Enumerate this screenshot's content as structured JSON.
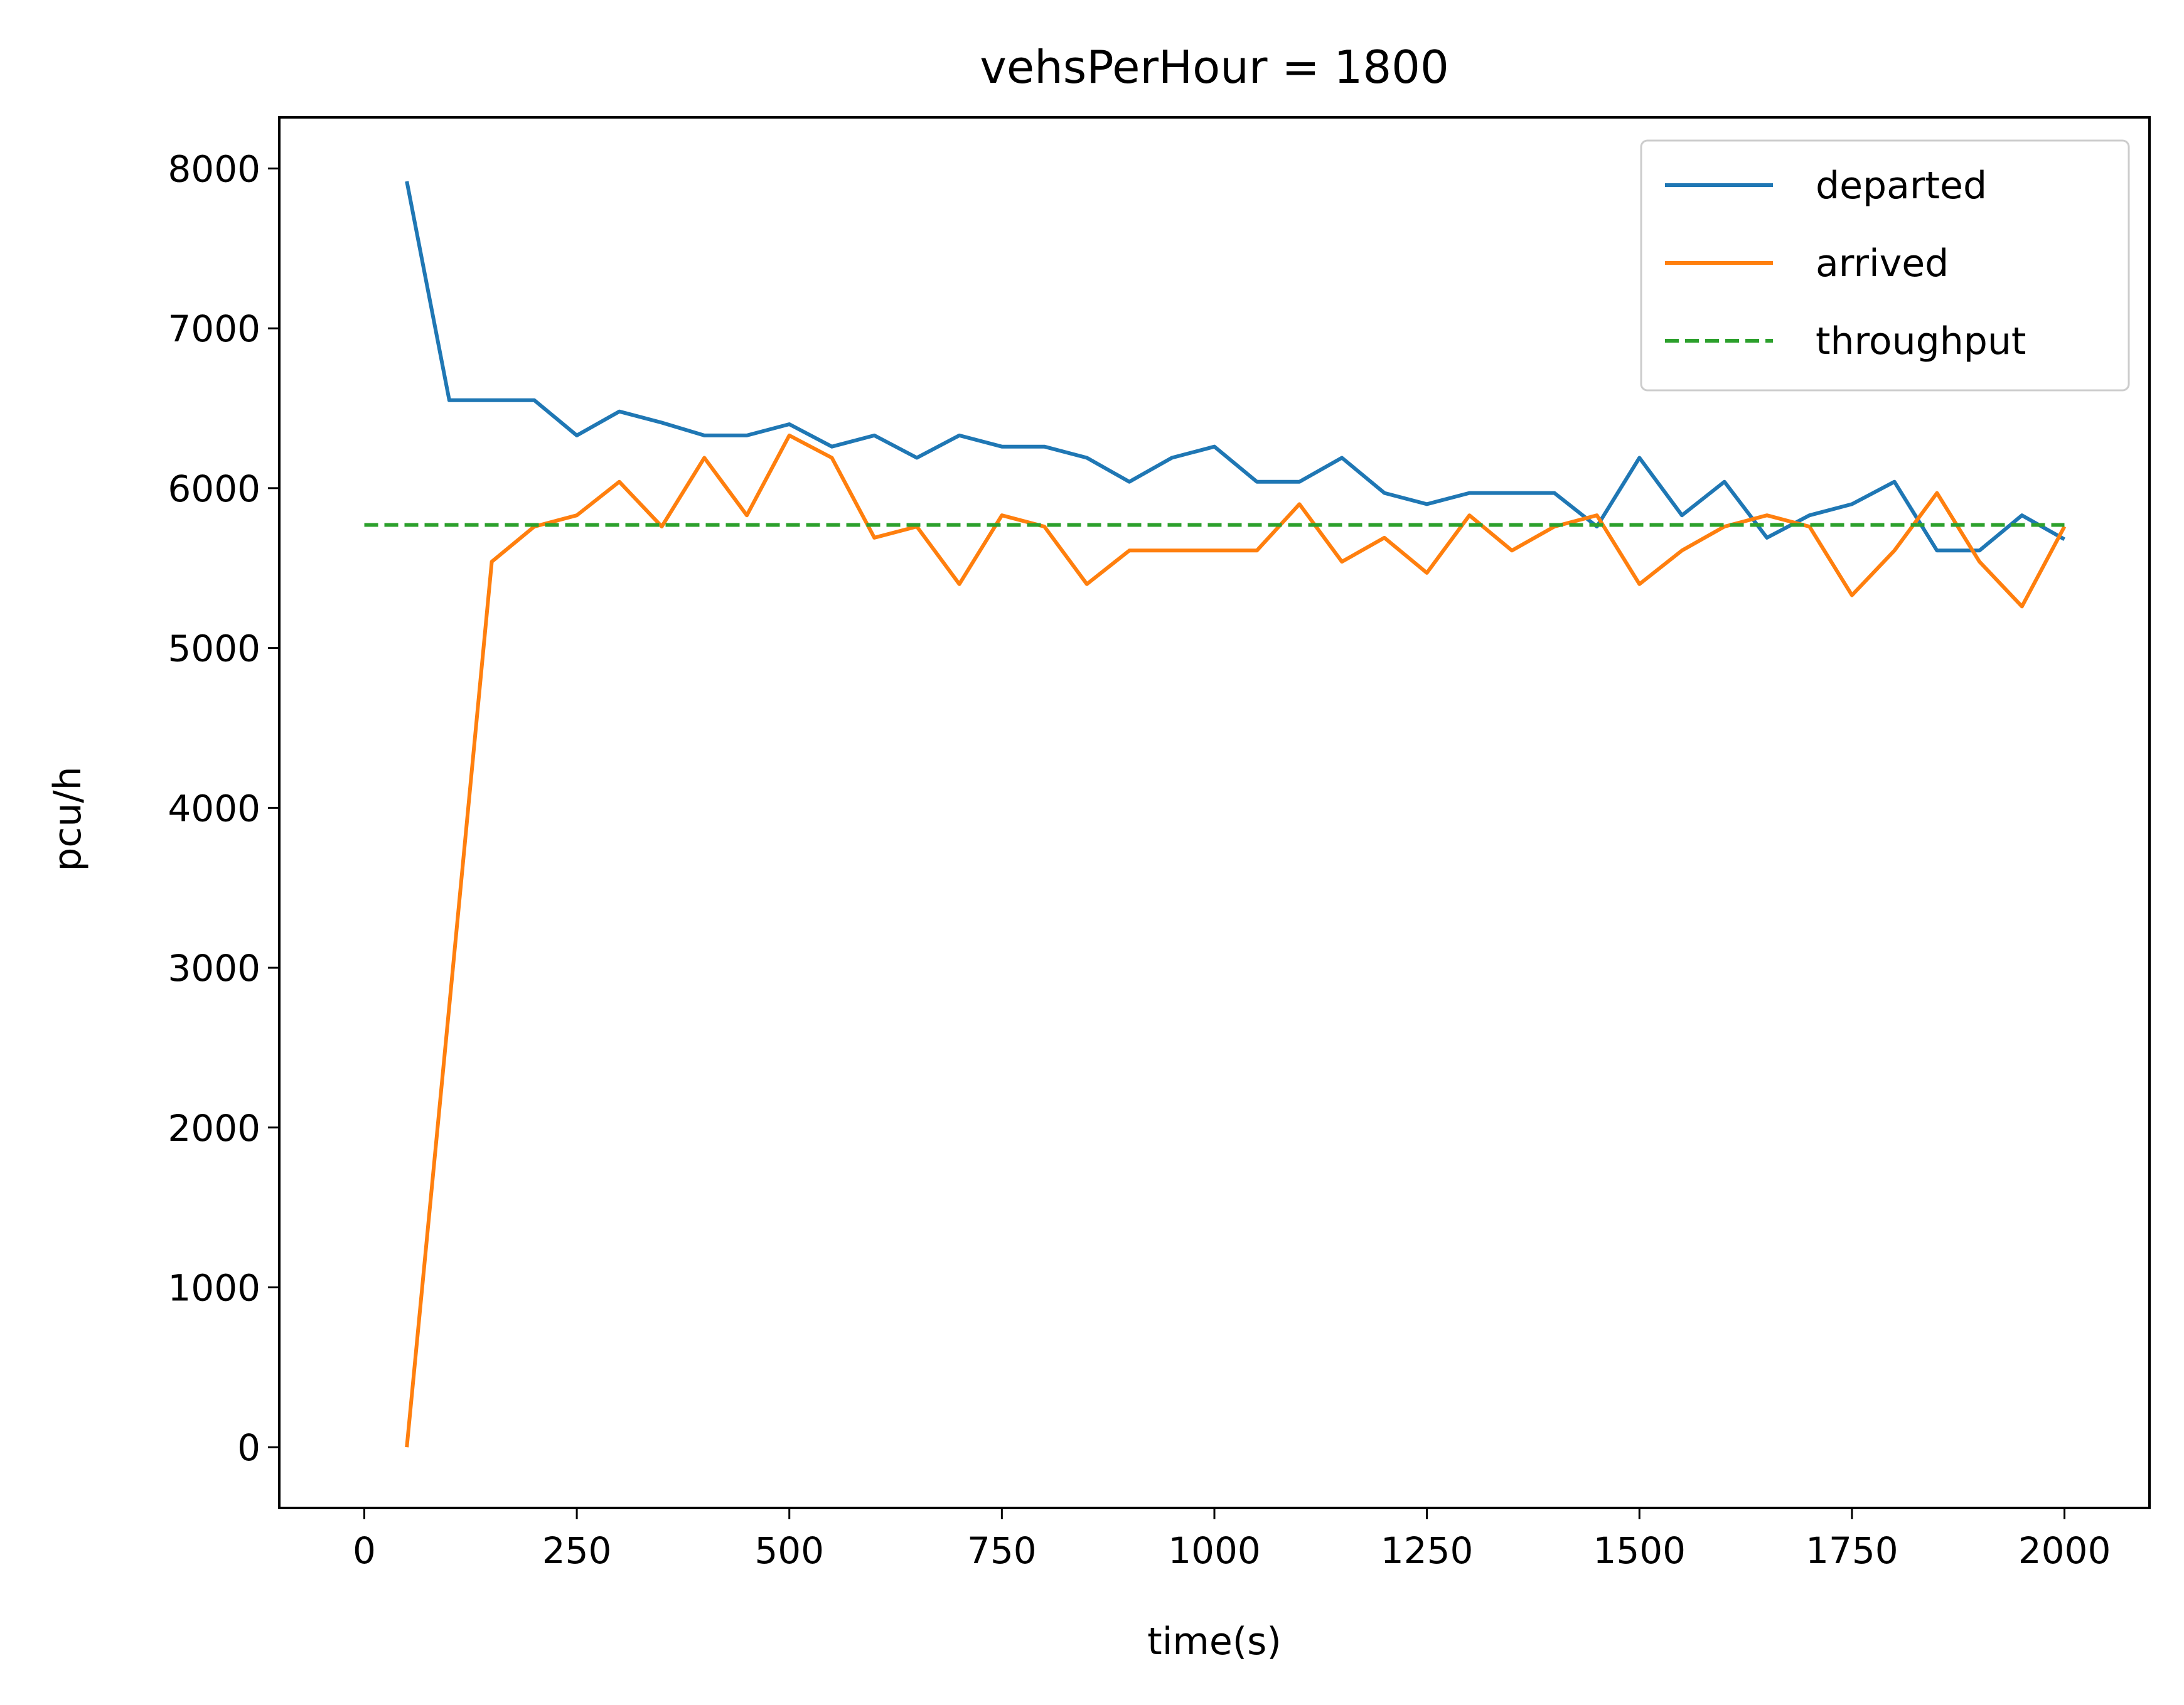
{
  "chart_data": {
    "type": "line",
    "title": "vehsPerHour = 1800",
    "xlabel": "time(s)",
    "ylabel": "pcu/h",
    "xlim": [
      -100,
      2100
    ],
    "ylim": [
      -380,
      8320
    ],
    "xticks": [
      0,
      250,
      500,
      750,
      1000,
      1250,
      1500,
      1750,
      2000
    ],
    "yticks": [
      0,
      1000,
      2000,
      3000,
      4000,
      5000,
      6000,
      7000,
      8000
    ],
    "xtick_labels": [
      "0",
      "250",
      "500",
      "750",
      "1000",
      "1250",
      "1500",
      "1750",
      "2000"
    ],
    "ytick_labels": [
      "0",
      "1000",
      "2000",
      "3000",
      "4000",
      "5000",
      "6000",
      "7000",
      "8000"
    ],
    "grid": false,
    "legend_position": "top-right",
    "series": [
      {
        "name": "departed",
        "color": "#1f77b4",
        "style": "solid",
        "x": [
          50,
          100,
          150,
          200,
          250,
          300,
          350,
          400,
          450,
          500,
          550,
          600,
          650,
          700,
          750,
          800,
          850,
          900,
          950,
          1000,
          1050,
          1100,
          1150,
          1200,
          1250,
          1300,
          1350,
          1400,
          1450,
          1500,
          1550,
          1600,
          1650,
          1700,
          1750,
          1800,
          1850,
          1900,
          1950,
          2000
        ],
        "y": [
          7920,
          6550,
          6550,
          6550,
          6330,
          6480,
          6410,
          6330,
          6330,
          6400,
          6260,
          6330,
          6190,
          6330,
          6260,
          6260,
          6190,
          6040,
          6190,
          6260,
          6040,
          6040,
          6190,
          5970,
          5900,
          5970,
          5970,
          5970,
          5760,
          6190,
          5830,
          6040,
          5690,
          5830,
          5900,
          6040,
          5610,
          5610,
          5830,
          5680
        ]
      },
      {
        "name": "arrived",
        "color": "#ff7f0e",
        "style": "solid",
        "x": [
          50,
          100,
          150,
          200,
          250,
          300,
          350,
          400,
          450,
          500,
          550,
          600,
          650,
          700,
          750,
          800,
          850,
          900,
          950,
          1000,
          1050,
          1100,
          1150,
          1200,
          1250,
          1300,
          1350,
          1400,
          1450,
          1500,
          1550,
          1600,
          1650,
          1700,
          1750,
          1800,
          1850,
          1900,
          1950,
          2000
        ],
        "y": [
          0,
          2760,
          5540,
          5760,
          5830,
          6040,
          5760,
          6190,
          5830,
          6330,
          6190,
          5690,
          5760,
          5400,
          5830,
          5760,
          5400,
          5610,
          5610,
          5610,
          5610,
          5900,
          5540,
          5690,
          5470,
          5830,
          5610,
          5760,
          5830,
          5400,
          5610,
          5760,
          5830,
          5760,
          5330,
          5610,
          5970,
          5540,
          5260,
          5760
        ]
      },
      {
        "name": "throughput",
        "color": "#2ca02c",
        "style": "dashed",
        "x": [
          0,
          2000
        ],
        "y": [
          5770,
          5770
        ]
      }
    ]
  }
}
